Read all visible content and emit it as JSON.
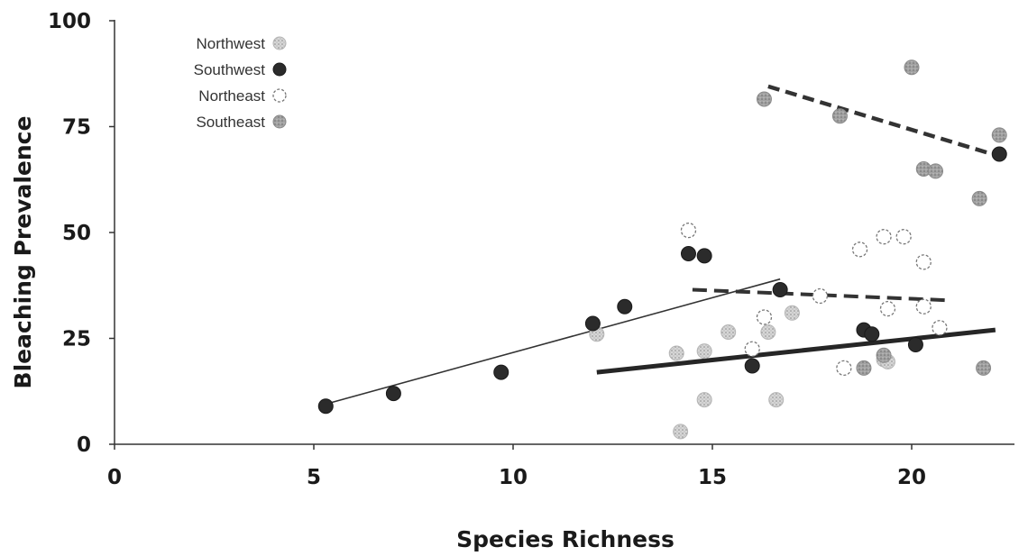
{
  "chart_data": {
    "type": "scatter",
    "title": "",
    "xlabel": "Species Richness",
    "ylabel": "Bleaching Prevalence",
    "xlim": [
      0,
      22.5
    ],
    "ylim": [
      0,
      100
    ],
    "xticks": [
      0,
      5,
      10,
      15,
      20
    ],
    "yticks": [
      0,
      25,
      50,
      75,
      100
    ],
    "grid": false,
    "legend_position": "top-left",
    "series": [
      {
        "name": "Northwest",
        "marker": "speckled-light",
        "color": "#c8c8c8",
        "points": [
          [
            12.1,
            26
          ],
          [
            14.1,
            21.5
          ],
          [
            14.2,
            3
          ],
          [
            14.8,
            22
          ],
          [
            14.8,
            10.5
          ],
          [
            15.4,
            26.5
          ],
          [
            16.4,
            26.5
          ],
          [
            16.6,
            10.5
          ],
          [
            17.0,
            31
          ],
          [
            19.3,
            20
          ],
          [
            19.4,
            19.5
          ]
        ]
      },
      {
        "name": "Southwest",
        "marker": "filled-dark",
        "color": "#2b2b2b",
        "points": [
          [
            5.3,
            9
          ],
          [
            7.0,
            12
          ],
          [
            9.7,
            17
          ],
          [
            12.0,
            28.5
          ],
          [
            12.8,
            32.5
          ],
          [
            14.4,
            45
          ],
          [
            14.8,
            44.5
          ],
          [
            16.0,
            18.5
          ],
          [
            16.7,
            36.5
          ],
          [
            18.8,
            27
          ],
          [
            19.0,
            26
          ],
          [
            20.1,
            23.5
          ],
          [
            22.2,
            68.5
          ]
        ]
      },
      {
        "name": "Northeast",
        "marker": "open",
        "color": "#ffffff",
        "points": [
          [
            14.4,
            50.5
          ],
          [
            16.0,
            22.5
          ],
          [
            16.3,
            30
          ],
          [
            17.7,
            35
          ],
          [
            18.3,
            18
          ],
          [
            18.7,
            46
          ],
          [
            19.3,
            49
          ],
          [
            19.4,
            32
          ],
          [
            19.8,
            49
          ],
          [
            20.3,
            43
          ],
          [
            20.3,
            32.5
          ],
          [
            20.7,
            27.5
          ]
        ]
      },
      {
        "name": "Southeast",
        "marker": "filled-gray",
        "color": "#9a9a9a",
        "points": [
          [
            16.3,
            81.5
          ],
          [
            18.2,
            77.5
          ],
          [
            18.8,
            18
          ],
          [
            19.3,
            21
          ],
          [
            20.0,
            89
          ],
          [
            20.3,
            65
          ],
          [
            20.6,
            64.5
          ],
          [
            21.7,
            58
          ],
          [
            21.8,
            18
          ],
          [
            22.2,
            73
          ]
        ]
      }
    ],
    "trendlines": [
      {
        "series": "Northwest",
        "style": "thick-solid",
        "x": [
          12.1,
          22.1
        ],
        "y": [
          17,
          27
        ]
      },
      {
        "series": "Southwest",
        "style": "thin-solid",
        "x": [
          5.3,
          16.7
        ],
        "y": [
          9.5,
          39
        ]
      },
      {
        "series": "Northeast",
        "style": "dashed-medium",
        "x": [
          14.5,
          20.9
        ],
        "y": [
          36.5,
          34
        ]
      },
      {
        "series": "Southeast",
        "style": "dashed-heavy",
        "x": [
          16.4,
          22.2
        ],
        "y": [
          84.5,
          68
        ]
      }
    ]
  }
}
